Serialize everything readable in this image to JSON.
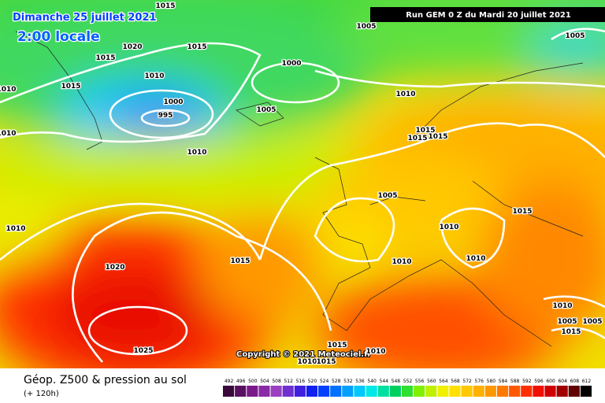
{
  "header": {
    "date": "Dimanche 25 juillet 2021",
    "time": "2:00 locale",
    "run": "Run GEM 0 Z du Mardi 20 juillet 2021"
  },
  "map": {
    "isobar_labels": [
      "1015",
      "1005",
      "1005",
      "1020",
      "1015",
      "1015",
      "1000",
      "1010",
      "1015",
      "1010",
      "1010",
      "1000",
      "1005",
      "995",
      "1010",
      "1015",
      "1015",
      "1015",
      "1010",
      "1005",
      "1015",
      "1010",
      "1010",
      "1015",
      "1010",
      "1010",
      "1020",
      "1010",
      "1005",
      "1005",
      "1015",
      "1025",
      "1015",
      "1010",
      "1010",
      "1015"
    ],
    "copyright": "Copyright © 2021 Meteociel.fr"
  },
  "legend": {
    "title": "Géop. Z500 & pression au sol",
    "subtitle": "(+ 120h)",
    "scale": [
      492,
      496,
      500,
      504,
      508,
      512,
      516,
      520,
      524,
      528,
      532,
      536,
      540,
      544,
      548,
      552,
      556,
      560,
      564,
      568,
      572,
      576,
      580,
      584,
      588,
      592,
      596,
      600,
      604,
      608,
      612
    ]
  }
}
